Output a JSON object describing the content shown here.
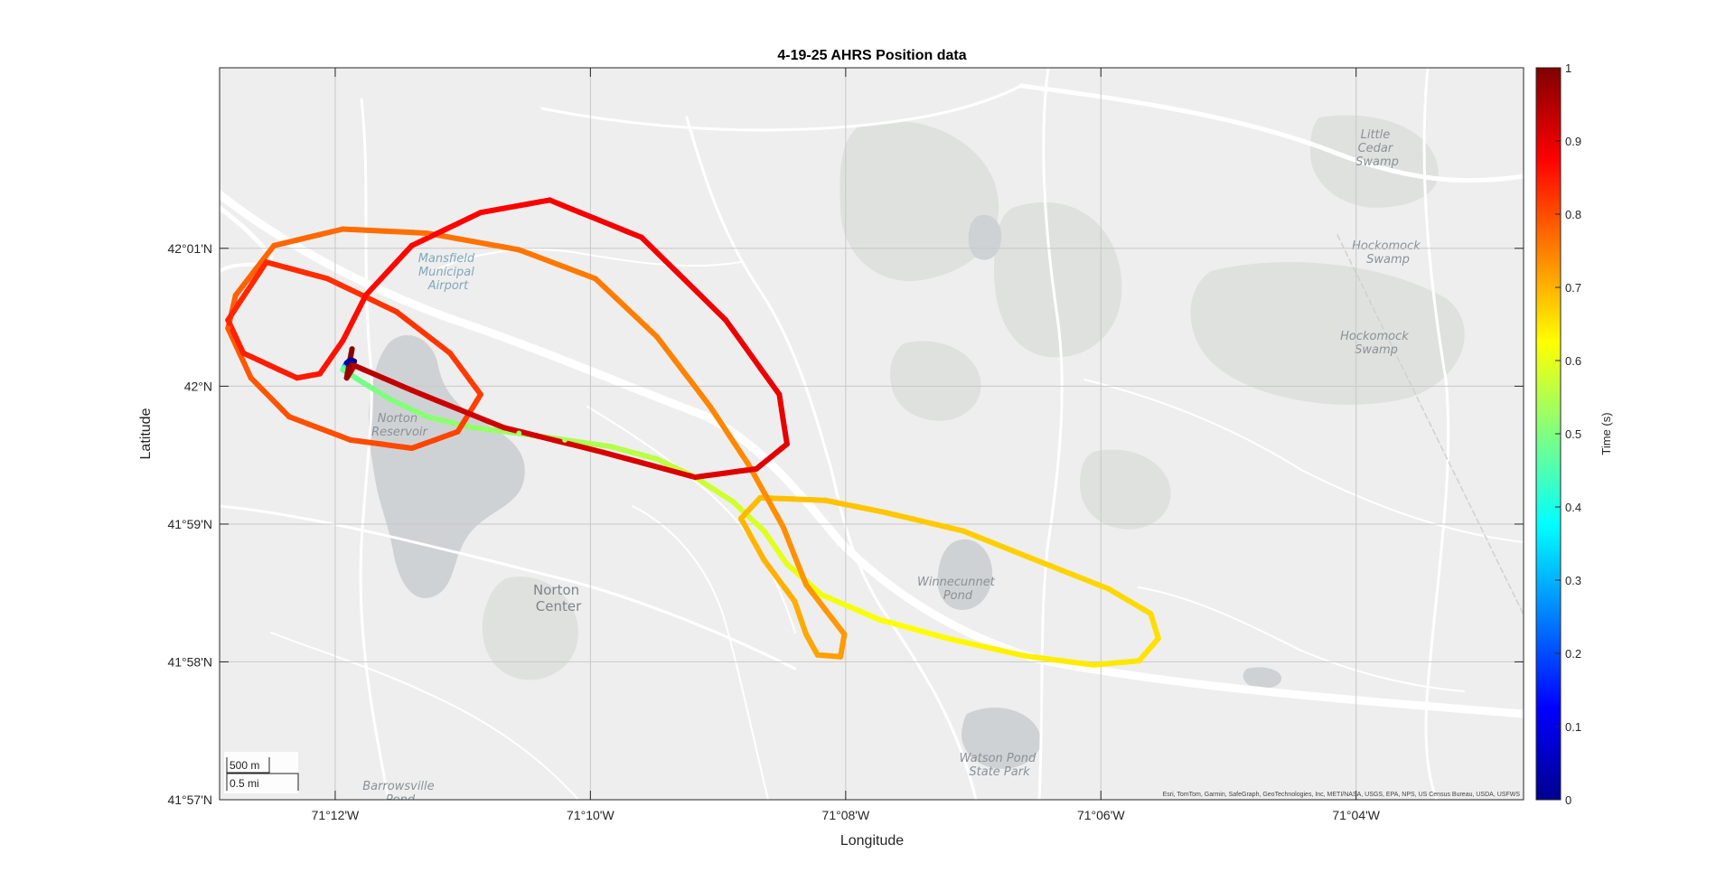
{
  "chart_data": {
    "type": "scatter",
    "title": "4-19-25 AHRS Position data",
    "xlabel": "Longitude",
    "ylabel": "Latitude",
    "xlim": [
      -71.2151,
      -71.0448
    ],
    "ylim": [
      41.95,
      42.0385
    ],
    "x_ticks": [
      {
        "value": -71.2,
        "label": "71°12'W"
      },
      {
        "value": -71.16667,
        "label": "71°10'W"
      },
      {
        "value": -71.13333,
        "label": "71°08'W"
      },
      {
        "value": -71.1,
        "label": "71°06'W"
      },
      {
        "value": -71.06667,
        "label": "71°04'W"
      }
    ],
    "y_ticks": [
      {
        "value": 41.95,
        "label": "41°57'N"
      },
      {
        "value": 41.96667,
        "label": "41°58'N"
      },
      {
        "value": 41.98333,
        "label": "41°59'N"
      },
      {
        "value": 42.0,
        "label": "42°N"
      },
      {
        "value": 42.01667,
        "label": "42°01'N"
      }
    ],
    "grid": true,
    "colorbar": {
      "label": "Time (s)",
      "colormap": "jet",
      "clim": [
        0,
        1
      ],
      "ticks": [
        "0",
        "0.1",
        "0.2",
        "0.3",
        "0.4",
        "0.5",
        "0.6",
        "0.7",
        "0.8",
        "0.9",
        "1"
      ]
    },
    "track": [
      {
        "lon": -71.1975,
        "lat": 42.003,
        "t": 0.0
      },
      {
        "lon": -71.198,
        "lat": 42.0032,
        "t": 0.02
      },
      {
        "lon": -71.1985,
        "lat": 42.0028,
        "t": 0.04
      },
      {
        "lon": -71.199,
        "lat": 42.002,
        "t": 0.48
      },
      {
        "lon": -71.197,
        "lat": 42.0008,
        "t": 0.49
      },
      {
        "lon": -71.193,
        "lat": 41.9985,
        "t": 0.5
      },
      {
        "lon": -71.188,
        "lat": 41.9963,
        "t": 0.51
      },
      {
        "lon": -71.182,
        "lat": 41.995,
        "t": 0.52
      },
      {
        "lon": -71.176,
        "lat": 41.9943,
        "t": 0.53
      },
      {
        "lon": -71.17,
        "lat": 41.9935,
        "t": 0.54
      },
      {
        "lon": -71.164,
        "lat": 41.9927,
        "t": 0.55
      },
      {
        "lon": -71.158,
        "lat": 41.9912,
        "t": 0.56
      },
      {
        "lon": -71.153,
        "lat": 41.989,
        "t": 0.57
      },
      {
        "lon": -71.148,
        "lat": 41.986,
        "t": 0.58
      },
      {
        "lon": -71.144,
        "lat": 41.9825,
        "t": 0.59
      },
      {
        "lon": -71.141,
        "lat": 41.9785,
        "t": 0.6
      },
      {
        "lon": -71.1365,
        "lat": 41.9748,
        "t": 0.61
      },
      {
        "lon": -71.129,
        "lat": 41.9718,
        "t": 0.62
      },
      {
        "lon": -71.12,
        "lat": 41.9695,
        "t": 0.63
      },
      {
        "lon": -71.11,
        "lat": 41.9674,
        "t": 0.64
      },
      {
        "lon": -71.101,
        "lat": 41.9663,
        "t": 0.645
      },
      {
        "lon": -71.095,
        "lat": 41.9668,
        "t": 0.65
      },
      {
        "lon": -71.0925,
        "lat": 41.9695,
        "t": 0.655
      },
      {
        "lon": -71.0935,
        "lat": 41.9725,
        "t": 0.66
      },
      {
        "lon": -71.099,
        "lat": 41.9755,
        "t": 0.665
      },
      {
        "lon": -71.108,
        "lat": 41.9788,
        "t": 0.67
      },
      {
        "lon": -71.118,
        "lat": 41.9825,
        "t": 0.675
      },
      {
        "lon": -71.128,
        "lat": 41.9847,
        "t": 0.68
      },
      {
        "lon": -71.136,
        "lat": 41.9862,
        "t": 0.685
      },
      {
        "lon": -71.1445,
        "lat": 41.9865,
        "t": 0.69
      },
      {
        "lon": -71.147,
        "lat": 41.984,
        "t": 0.695
      },
      {
        "lon": -71.144,
        "lat": 41.979,
        "t": 0.7
      },
      {
        "lon": -71.14,
        "lat": 41.974,
        "t": 0.705
      },
      {
        "lon": -71.1385,
        "lat": 41.97,
        "t": 0.71
      },
      {
        "lon": -71.137,
        "lat": 41.9675,
        "t": 0.715
      },
      {
        "lon": -71.134,
        "lat": 41.9673,
        "t": 0.72
      },
      {
        "lon": -71.1335,
        "lat": 41.97,
        "t": 0.725
      },
      {
        "lon": -71.1385,
        "lat": 41.976,
        "t": 0.73
      },
      {
        "lon": -71.1415,
        "lat": 41.983,
        "t": 0.735
      },
      {
        "lon": -71.146,
        "lat": 41.9905,
        "t": 0.74
      },
      {
        "lon": -71.151,
        "lat": 41.9975,
        "t": 0.745
      },
      {
        "lon": -71.158,
        "lat": 42.006,
        "t": 0.75
      },
      {
        "lon": -71.166,
        "lat": 42.013,
        "t": 0.755
      },
      {
        "lon": -71.176,
        "lat": 42.0165,
        "t": 0.76
      },
      {
        "lon": -71.188,
        "lat": 42.0185,
        "t": 0.765
      },
      {
        "lon": -71.199,
        "lat": 42.019,
        "t": 0.77
      },
      {
        "lon": -71.208,
        "lat": 42.017,
        "t": 0.775
      },
      {
        "lon": -71.213,
        "lat": 42.011,
        "t": 0.78
      },
      {
        "lon": -71.214,
        "lat": 42.007,
        "t": 0.785
      },
      {
        "lon": -71.211,
        "lat": 42.001,
        "t": 0.79
      },
      {
        "lon": -71.206,
        "lat": 41.9963,
        "t": 0.795
      },
      {
        "lon": -71.198,
        "lat": 41.9935,
        "t": 0.8
      },
      {
        "lon": -71.19,
        "lat": 41.9925,
        "t": 0.805
      },
      {
        "lon": -71.184,
        "lat": 41.9945,
        "t": 0.81
      },
      {
        "lon": -71.181,
        "lat": 41.999,
        "t": 0.815
      },
      {
        "lon": -71.185,
        "lat": 42.004,
        "t": 0.82
      },
      {
        "lon": -71.192,
        "lat": 42.009,
        "t": 0.825
      },
      {
        "lon": -71.201,
        "lat": 42.013,
        "t": 0.83
      },
      {
        "lon": -71.209,
        "lat": 42.015,
        "t": 0.835
      },
      {
        "lon": -71.214,
        "lat": 42.008,
        "t": 0.84
      },
      {
        "lon": -71.212,
        "lat": 42.004,
        "t": 0.845
      },
      {
        "lon": -71.205,
        "lat": 42.001,
        "t": 0.85
      },
      {
        "lon": -71.202,
        "lat": 42.0015,
        "t": 0.855
      },
      {
        "lon": -71.199,
        "lat": 42.0055,
        "t": 0.86
      },
      {
        "lon": -71.196,
        "lat": 42.011,
        "t": 0.865
      },
      {
        "lon": -71.19,
        "lat": 42.017,
        "t": 0.87
      },
      {
        "lon": -71.181,
        "lat": 42.021,
        "t": 0.875
      },
      {
        "lon": -71.172,
        "lat": 42.0225,
        "t": 0.88
      },
      {
        "lon": -71.16,
        "lat": 42.018,
        "t": 0.885
      },
      {
        "lon": -71.149,
        "lat": 42.008,
        "t": 0.89
      },
      {
        "lon": -71.142,
        "lat": 41.999,
        "t": 0.895
      },
      {
        "lon": -71.141,
        "lat": 41.993,
        "t": 0.9
      },
      {
        "lon": -71.145,
        "lat": 41.99,
        "t": 0.905
      },
      {
        "lon": -71.153,
        "lat": 41.989,
        "t": 0.91
      },
      {
        "lon": -71.165,
        "lat": 41.992,
        "t": 0.915
      },
      {
        "lon": -71.178,
        "lat": 41.995,
        "t": 0.92
      },
      {
        "lon": -71.19,
        "lat": 41.9995,
        "t": 0.93
      },
      {
        "lon": -71.1975,
        "lat": 42.0025,
        "t": 0.95
      },
      {
        "lon": -71.1985,
        "lat": 42.001,
        "t": 0.97
      },
      {
        "lon": -71.1978,
        "lat": 42.0045,
        "t": 0.99
      }
    ]
  },
  "map": {
    "place_labels": [
      {
        "text": "Norton Reservoir",
        "lines": [
          "Norton",
          "Reservoir"
        ]
      },
      {
        "text": "Norton Center",
        "lines": [
          "Norton",
          "Center"
        ]
      },
      {
        "text": "Little Cedar Swamp",
        "lines": [
          "Little",
          "Cedar",
          "Swamp"
        ]
      },
      {
        "text": "Hockomock Swamp",
        "lines": [
          "Hockomock",
          "Swamp"
        ]
      },
      {
        "text": "Hockomock Swamp",
        "lines": [
          "Hockomock",
          "Swamp"
        ]
      },
      {
        "text": "Winnecunnet Pond",
        "lines": [
          "Winnecunnet",
          "Pond"
        ]
      },
      {
        "text": "Watson Pond State Park",
        "lines": [
          "Watson Pond",
          "State Park"
        ]
      },
      {
        "text": "Barrowsville Pond",
        "lines": [
          "Barrowsville",
          "Pond"
        ]
      },
      {
        "text": "Mansfield Municipal Airport",
        "lines": [
          "Mansfield",
          "Municipal",
          "Airport"
        ]
      }
    ],
    "scalebar": {
      "metric": "500 m",
      "imperial": "0.5 mi"
    },
    "attribution": "Esri, TomTom, Garmin, SafeGraph, GeoTechnologies, Inc, METI/NASA, USGS, EPA, NPS, US Census Bureau, USDA, USFWS"
  }
}
